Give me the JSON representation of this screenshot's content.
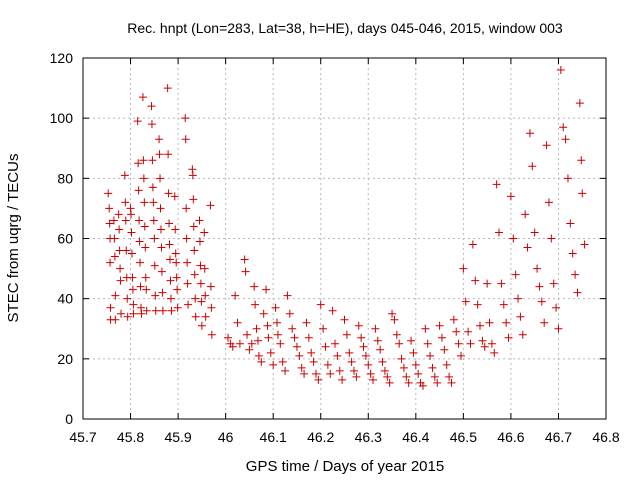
{
  "chart_data": {
    "type": "scatter",
    "title": "Rec. hnpt (Lon=283, Lat=38, h=HE), days 045-046, 2015, window 003",
    "xlabel": "GPS time / Days of year 2015",
    "ylabel": "STEC from uqrg / TECUs",
    "xlim": [
      45.7,
      46.8
    ],
    "ylim": [
      0,
      120
    ],
    "xticks": [
      "45.7",
      "45.8",
      "45.9",
      "46",
      "46.1",
      "46.2",
      "46.3",
      "46.4",
      "46.5",
      "46.6",
      "46.7",
      "46.8"
    ],
    "yticks": [
      "0",
      "20",
      "40",
      "60",
      "80",
      "100",
      "120"
    ],
    "grid": true,
    "marker": "+",
    "color": "#cc0000",
    "series": [
      {
        "name": "STEC",
        "points": [
          [
            45.753,
            75
          ],
          [
            45.755,
            70
          ],
          [
            45.756,
            65
          ],
          [
            45.757,
            60
          ],
          [
            45.757,
            52
          ],
          [
            45.758,
            37
          ],
          [
            45.758,
            33
          ],
          [
            45.765,
            66
          ],
          [
            45.766,
            60
          ],
          [
            45.767,
            54
          ],
          [
            45.768,
            41
          ],
          [
            45.768,
            33
          ],
          [
            45.775,
            68
          ],
          [
            45.776,
            63
          ],
          [
            45.777,
            56
          ],
          [
            45.778,
            50
          ],
          [
            45.779,
            46
          ],
          [
            45.78,
            35
          ],
          [
            45.788,
            81
          ],
          [
            45.789,
            72
          ],
          [
            45.79,
            66
          ],
          [
            45.791,
            56
          ],
          [
            45.792,
            47
          ],
          [
            45.793,
            40
          ],
          [
            45.794,
            34
          ],
          [
            45.8,
            70
          ],
          [
            45.801,
            68
          ],
          [
            45.802,
            62
          ],
          [
            45.803,
            55
          ],
          [
            45.804,
            47
          ],
          [
            45.805,
            43
          ],
          [
            45.806,
            38
          ],
          [
            45.806,
            35
          ],
          [
            45.815,
            99
          ],
          [
            45.816,
            85
          ],
          [
            45.817,
            76
          ],
          [
            45.818,
            66
          ],
          [
            45.819,
            59
          ],
          [
            45.82,
            52
          ],
          [
            45.821,
            44
          ],
          [
            45.822,
            37
          ],
          [
            45.823,
            35
          ],
          [
            45.826,
            107
          ],
          [
            45.827,
            86
          ],
          [
            45.828,
            80
          ],
          [
            45.829,
            72
          ],
          [
            45.83,
            64
          ],
          [
            45.831,
            57
          ],
          [
            45.832,
            47
          ],
          [
            45.833,
            43
          ],
          [
            45.834,
            36
          ],
          [
            45.844,
            104
          ],
          [
            45.845,
            98
          ],
          [
            45.846,
            86
          ],
          [
            45.847,
            77
          ],
          [
            45.848,
            72
          ],
          [
            45.849,
            66
          ],
          [
            45.85,
            60
          ],
          [
            45.851,
            51
          ],
          [
            45.852,
            41
          ],
          [
            45.853,
            36
          ],
          [
            45.86,
            93
          ],
          [
            45.861,
            88
          ],
          [
            45.862,
            80
          ],
          [
            45.863,
            70
          ],
          [
            45.864,
            63
          ],
          [
            45.865,
            57
          ],
          [
            45.866,
            49
          ],
          [
            45.867,
            42
          ],
          [
            45.868,
            36
          ],
          [
            45.878,
            110
          ],
          [
            45.879,
            88
          ],
          [
            45.88,
            75
          ],
          [
            45.881,
            65
          ],
          [
            45.882,
            58
          ],
          [
            45.883,
            53
          ],
          [
            45.884,
            46
          ],
          [
            45.885,
            40
          ],
          [
            45.886,
            36
          ],
          [
            45.893,
            74
          ],
          [
            45.894,
            63
          ],
          [
            45.895,
            55
          ],
          [
            45.896,
            52
          ],
          [
            45.897,
            47
          ],
          [
            45.898,
            43
          ],
          [
            45.899,
            37
          ],
          [
            45.915,
            100
          ],
          [
            45.916,
            93
          ],
          [
            45.917,
            70
          ],
          [
            45.918,
            60
          ],
          [
            45.919,
            52
          ],
          [
            45.92,
            45
          ],
          [
            45.921,
            38
          ],
          [
            45.93,
            83
          ],
          [
            45.931,
            81
          ],
          [
            45.932,
            73
          ],
          [
            45.933,
            64
          ],
          [
            45.934,
            56
          ],
          [
            45.935,
            48
          ],
          [
            45.936,
            40
          ],
          [
            45.937,
            34
          ],
          [
            45.945,
            66
          ],
          [
            45.946,
            59
          ],
          [
            45.947,
            51
          ],
          [
            45.948,
            45
          ],
          [
            45.949,
            39
          ],
          [
            45.95,
            31
          ],
          [
            45.955,
            62
          ],
          [
            45.956,
            50
          ],
          [
            45.957,
            41
          ],
          [
            45.958,
            34
          ],
          [
            45.968,
            71
          ],
          [
            45.969,
            44
          ],
          [
            45.97,
            37
          ],
          [
            45.971,
            28
          ],
          [
            46.005,
            27
          ],
          [
            46.01,
            25
          ],
          [
            46.015,
            24
          ],
          [
            46.02,
            41
          ],
          [
            46.025,
            32
          ],
          [
            46.03,
            25
          ],
          [
            46.04,
            53
          ],
          [
            46.042,
            49
          ],
          [
            46.045,
            28
          ],
          [
            46.05,
            23
          ],
          [
            46.055,
            25
          ],
          [
            46.06,
            44
          ],
          [
            46.062,
            38
          ],
          [
            46.065,
            30
          ],
          [
            46.068,
            26
          ],
          [
            46.07,
            21
          ],
          [
            46.075,
            19
          ],
          [
            46.08,
            35
          ],
          [
            46.085,
            43
          ],
          [
            46.088,
            31
          ],
          [
            46.09,
            27
          ],
          [
            46.095,
            22
          ],
          [
            46.1,
            18
          ],
          [
            46.105,
            37
          ],
          [
            46.108,
            32
          ],
          [
            46.11,
            28
          ],
          [
            46.115,
            25
          ],
          [
            46.12,
            19
          ],
          [
            46.125,
            16
          ],
          [
            46.13,
            41
          ],
          [
            46.135,
            35
          ],
          [
            46.14,
            30
          ],
          [
            46.145,
            27
          ],
          [
            46.15,
            24
          ],
          [
            46.155,
            21
          ],
          [
            46.16,
            17
          ],
          [
            46.165,
            15
          ],
          [
            46.17,
            32
          ],
          [
            46.175,
            27
          ],
          [
            46.18,
            22
          ],
          [
            46.185,
            19
          ],
          [
            46.19,
            15
          ],
          [
            46.195,
            13
          ],
          [
            46.2,
            38
          ],
          [
            46.205,
            30
          ],
          [
            46.21,
            24
          ],
          [
            46.215,
            18
          ],
          [
            46.22,
            15
          ],
          [
            46.225,
            36
          ],
          [
            46.23,
            25
          ],
          [
            46.235,
            21
          ],
          [
            46.24,
            16
          ],
          [
            46.245,
            13
          ],
          [
            46.25,
            33
          ],
          [
            46.255,
            28
          ],
          [
            46.26,
            22
          ],
          [
            46.265,
            19
          ],
          [
            46.27,
            16
          ],
          [
            46.275,
            14
          ],
          [
            46.28,
            31
          ],
          [
            46.285,
            27
          ],
          [
            46.29,
            24
          ],
          [
            46.295,
            21
          ],
          [
            46.3,
            18
          ],
          [
            46.305,
            15
          ],
          [
            46.31,
            13
          ],
          [
            46.315,
            30
          ],
          [
            46.32,
            26
          ],
          [
            46.325,
            23
          ],
          [
            46.33,
            19
          ],
          [
            46.335,
            16
          ],
          [
            46.34,
            14
          ],
          [
            46.345,
            12
          ],
          [
            46.35,
            35
          ],
          [
            46.355,
            33
          ],
          [
            46.36,
            28
          ],
          [
            46.365,
            25
          ],
          [
            46.37,
            20
          ],
          [
            46.375,
            17
          ],
          [
            46.38,
            14
          ],
          [
            46.385,
            12
          ],
          [
            46.39,
            26
          ],
          [
            46.395,
            22
          ],
          [
            46.4,
            18
          ],
          [
            46.405,
            15
          ],
          [
            46.41,
            12
          ],
          [
            46.415,
            11
          ],
          [
            46.42,
            30
          ],
          [
            46.425,
            25
          ],
          [
            46.43,
            21
          ],
          [
            46.435,
            17
          ],
          [
            46.44,
            14
          ],
          [
            46.445,
            12
          ],
          [
            46.45,
            31
          ],
          [
            46.455,
            27
          ],
          [
            46.46,
            23
          ],
          [
            46.465,
            18
          ],
          [
            46.47,
            14
          ],
          [
            46.475,
            12
          ],
          [
            46.48,
            33
          ],
          [
            46.485,
            29
          ],
          [
            46.49,
            25
          ],
          [
            46.495,
            21
          ],
          [
            46.5,
            50
          ],
          [
            46.505,
            39
          ],
          [
            46.51,
            29
          ],
          [
            46.515,
            25
          ],
          [
            46.52,
            58
          ],
          [
            46.525,
            46
          ],
          [
            46.53,
            38
          ],
          [
            46.535,
            31
          ],
          [
            46.54,
            26
          ],
          [
            46.545,
            24
          ],
          [
            46.55,
            45
          ],
          [
            46.555,
            32
          ],
          [
            46.56,
            25
          ],
          [
            46.565,
            22
          ],
          [
            46.57,
            78
          ],
          [
            46.575,
            62
          ],
          [
            46.58,
            45
          ],
          [
            46.585,
            38
          ],
          [
            46.59,
            32
          ],
          [
            46.595,
            27
          ],
          [
            46.6,
            74
          ],
          [
            46.605,
            60
          ],
          [
            46.61,
            48
          ],
          [
            46.615,
            40
          ],
          [
            46.62,
            34
          ],
          [
            46.625,
            28
          ],
          [
            46.63,
            68
          ],
          [
            46.635,
            57
          ],
          [
            46.64,
            95
          ],
          [
            46.645,
            84
          ],
          [
            46.65,
            62
          ],
          [
            46.655,
            50
          ],
          [
            46.66,
            44
          ],
          [
            46.665,
            39
          ],
          [
            46.67,
            32
          ],
          [
            46.675,
            91
          ],
          [
            46.68,
            72
          ],
          [
            46.685,
            60
          ],
          [
            46.69,
            45
          ],
          [
            46.695,
            37
          ],
          [
            46.7,
            30
          ],
          [
            46.705,
            116
          ],
          [
            46.71,
            97
          ],
          [
            46.715,
            93
          ],
          [
            46.72,
            80
          ],
          [
            46.725,
            65
          ],
          [
            46.73,
            55
          ],
          [
            46.735,
            48
          ],
          [
            46.74,
            42
          ],
          [
            46.745,
            105
          ],
          [
            46.748,
            86
          ],
          [
            46.75,
            75
          ],
          [
            46.755,
            58
          ]
        ]
      }
    ]
  }
}
